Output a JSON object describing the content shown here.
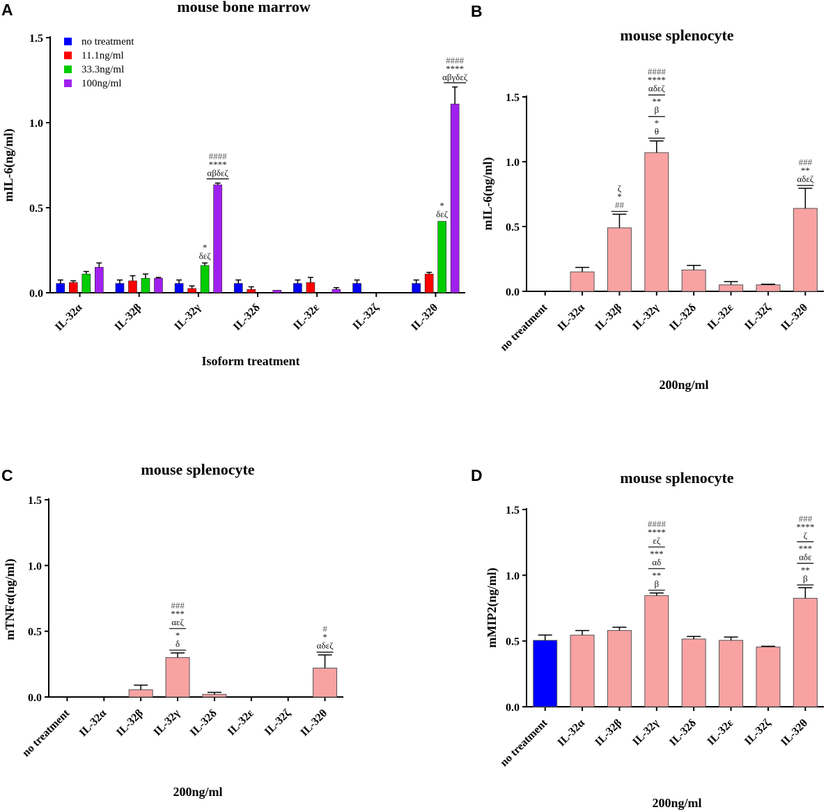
{
  "chart_data": [
    {
      "panel": "A",
      "type": "bar",
      "title": "mouse bone marrow",
      "xlabel": "Isoform treatment",
      "ylabel": "mIL-6(ng/ml)",
      "ylim": [
        0,
        1.5
      ],
      "yticks": [
        "0.0",
        "0.5",
        "1.0",
        "1.5"
      ],
      "categories": [
        "IL-32α",
        "IL-32β",
        "IL-32γ",
        "IL-32δ",
        "IL-32ε",
        "IL-32ζ",
        "IL-32θ"
      ],
      "series": [
        {
          "name": "no treatment",
          "color": "#0000ff",
          "values": [
            0.055,
            0.055,
            0.055,
            0.055,
            0.055,
            0.055,
            0.055
          ],
          "errors": [
            0.02,
            0.02,
            0.02,
            0.02,
            0.02,
            0.02,
            0.02
          ]
        },
        {
          "name": "11.1ng/ml",
          "color": "#ff0000",
          "values": [
            0.06,
            0.07,
            0.025,
            0.02,
            0.06,
            0,
            0.11
          ],
          "errors": [
            0.01,
            0.03,
            0.015,
            0.015,
            0.03,
            0,
            0.01
          ]
        },
        {
          "name": "33.3ng/ml",
          "color": "#00cc00",
          "values": [
            0.11,
            0.085,
            0.16,
            0,
            0,
            0,
            0.42
          ],
          "errors": [
            0.015,
            0.025,
            0.015,
            0,
            0,
            0,
            0
          ]
        },
        {
          "name": "100ng/ml",
          "color": "#a020f0",
          "values": [
            0.15,
            0.085,
            0.635,
            0.015,
            0.02,
            0,
            1.11
          ],
          "errors": [
            0.025,
            0.005,
            0.01,
            0,
            0.01,
            0,
            0.1
          ]
        }
      ],
      "annotations": [
        {
          "category": 2,
          "series": 2,
          "lines": [
            "*",
            "δεζ"
          ]
        },
        {
          "category": 2,
          "series": 3,
          "lines": [
            "####",
            "****",
            "αβδεζ"
          ]
        },
        {
          "category": 6,
          "series": 2,
          "lines": [
            "*",
            "δεζ"
          ]
        },
        {
          "category": 6,
          "series": 3,
          "lines": [
            "####",
            "****",
            "αβγδεζ"
          ]
        }
      ]
    },
    {
      "panel": "B",
      "type": "bar",
      "title": "mouse splenocyte",
      "xlabel": "200ng/ml",
      "ylabel": "mIL-6(ng/ml)",
      "ylim": [
        0,
        1.5
      ],
      "yticks": [
        "0.0",
        "0.5",
        "1.0",
        "1.5"
      ],
      "categories": [
        "no treatment",
        "IL-32α",
        "IL-32β",
        "IL-32γ",
        "IL-32δ",
        "IL-32ε",
        "IL-32ζ",
        "IL-32θ"
      ],
      "values": [
        0,
        0.15,
        0.49,
        1.07,
        0.165,
        0.05,
        0.05,
        0.64
      ],
      "errors": [
        0,
        0.035,
        0.105,
        0.09,
        0.035,
        0.025,
        0.005,
        0.155
      ],
      "colors": [
        "#0000ff",
        "#f9a2a2",
        "#f9a2a2",
        "#f9a2a2",
        "#f9a2a2",
        "#f9a2a2",
        "#f9a2a2",
        "#f9a2a2"
      ],
      "annotations": [
        {
          "category": 2,
          "groups": [
            [
              "##",
              "*",
              "ζ"
            ]
          ]
        },
        {
          "category": 3,
          "groups": [
            [
              "θ",
              "*"
            ],
            [
              "β",
              "**"
            ],
            [
              "αδεζ",
              "****",
              "####"
            ]
          ]
        },
        {
          "category": 7,
          "groups": [
            [
              "αδεζ",
              "**",
              "###"
            ]
          ]
        }
      ]
    },
    {
      "panel": "C",
      "type": "bar",
      "title": "mouse splenocyte",
      "xlabel": "200ng/ml",
      "ylabel": "mTNFα(ng/ml)",
      "ylim": [
        0,
        1.5
      ],
      "yticks": [
        "0.0",
        "0.5",
        "1.0",
        "1.5"
      ],
      "categories": [
        "no treatment",
        "IL-32α",
        "IL-32β",
        "IL-32γ",
        "IL-32δ",
        "IL-32ε",
        "IL-32ζ",
        "IL-32θ"
      ],
      "values": [
        0,
        0,
        0.055,
        0.3,
        0.02,
        0,
        0,
        0.22
      ],
      "errors": [
        0,
        0,
        0.035,
        0.035,
        0.015,
        0,
        0,
        0.1
      ],
      "colors": [
        "#0000ff",
        "#f9a2a2",
        "#f9a2a2",
        "#f9a2a2",
        "#f9a2a2",
        "#f9a2a2",
        "#f9a2a2",
        "#f9a2a2"
      ],
      "annotations": [
        {
          "category": 3,
          "groups": [
            [
              "δ",
              "*"
            ],
            [
              "αεζ",
              "***",
              "###"
            ]
          ]
        },
        {
          "category": 7,
          "groups": [
            [
              "αδεζ",
              "*",
              "#"
            ]
          ]
        }
      ]
    },
    {
      "panel": "D",
      "type": "bar",
      "title": "mouse splenocyte",
      "xlabel": "200ng/ml",
      "ylabel": "mMIP2(ng/ml)",
      "ylim": [
        0,
        1.5
      ],
      "yticks": [
        "0.0",
        "0.5",
        "1.0",
        "1.5"
      ],
      "categories": [
        "no treatment",
        "IL-32α",
        "IL-32β",
        "IL-32γ",
        "IL-32δ",
        "IL-32ε",
        "IL-32ζ",
        "IL-32θ"
      ],
      "values": [
        0.505,
        0.545,
        0.58,
        0.845,
        0.515,
        0.505,
        0.455,
        0.825
      ],
      "errors": [
        0.04,
        0.035,
        0.025,
        0.02,
        0.02,
        0.025,
        0.005,
        0.08
      ],
      "colors": [
        "#0000ff",
        "#f9a2a2",
        "#f9a2a2",
        "#f9a2a2",
        "#f9a2a2",
        "#f9a2a2",
        "#f9a2a2",
        "#f9a2a2"
      ],
      "annotations": [
        {
          "category": 3,
          "groups": [
            [
              "β",
              "**"
            ],
            [
              "αδ",
              "***"
            ],
            [
              "εζ",
              "****",
              "####"
            ]
          ]
        },
        {
          "category": 7,
          "groups": [
            [
              "β",
              "**"
            ],
            [
              "αδε",
              "***"
            ],
            [
              "ζ",
              "****",
              "###"
            ]
          ]
        }
      ]
    }
  ],
  "panel_labels": [
    "A",
    "B",
    "C",
    "D"
  ]
}
